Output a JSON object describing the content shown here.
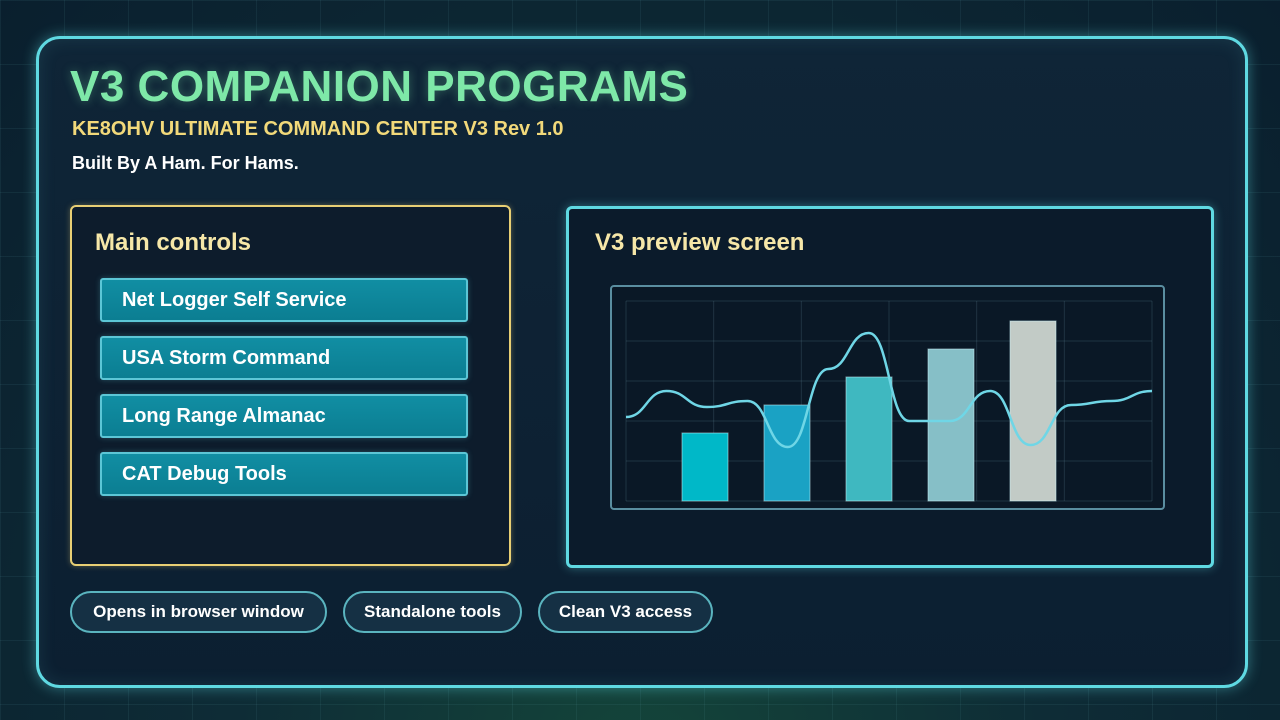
{
  "header": {
    "title": "V3 COMPANION PROGRAMS",
    "subtitle": "KE8OHV ULTIMATE COMMAND CENTER V3 Rev 1.0",
    "tagline": "Built By A Ham. For Hams."
  },
  "main_controls": {
    "heading": "Main controls",
    "buttons": [
      {
        "label": "Net Logger Self Service"
      },
      {
        "label": "USA Storm Command"
      },
      {
        "label": "Long Range Almanac"
      },
      {
        "label": "CAT Debug Tools"
      }
    ]
  },
  "preview": {
    "heading": "V3 preview screen",
    "bar_levels": [
      0.34,
      0.48,
      0.62,
      0.76,
      0.9
    ],
    "bar_colors": [
      "#00b8c8",
      "#1aa2c4",
      "#3fb8c0",
      "#86bfc7",
      "#c2cbc6"
    ],
    "line_color": "#6fd6e6",
    "line_levels": [
      0.42,
      0.55,
      0.47,
      0.5,
      0.27,
      0.66,
      0.84,
      0.4,
      0.4,
      0.55,
      0.28,
      0.48,
      0.5,
      0.55
    ]
  },
  "features": [
    {
      "label": "Opens in browser window"
    },
    {
      "label": "Standalone tools"
    },
    {
      "label": "Clean V3 access"
    }
  ],
  "colors": {
    "accent_cyan": "#5fd9e2",
    "title_green": "#7ee8a8",
    "subtitle_gold": "#f2d97a",
    "button_teal": "#0b7e92"
  }
}
